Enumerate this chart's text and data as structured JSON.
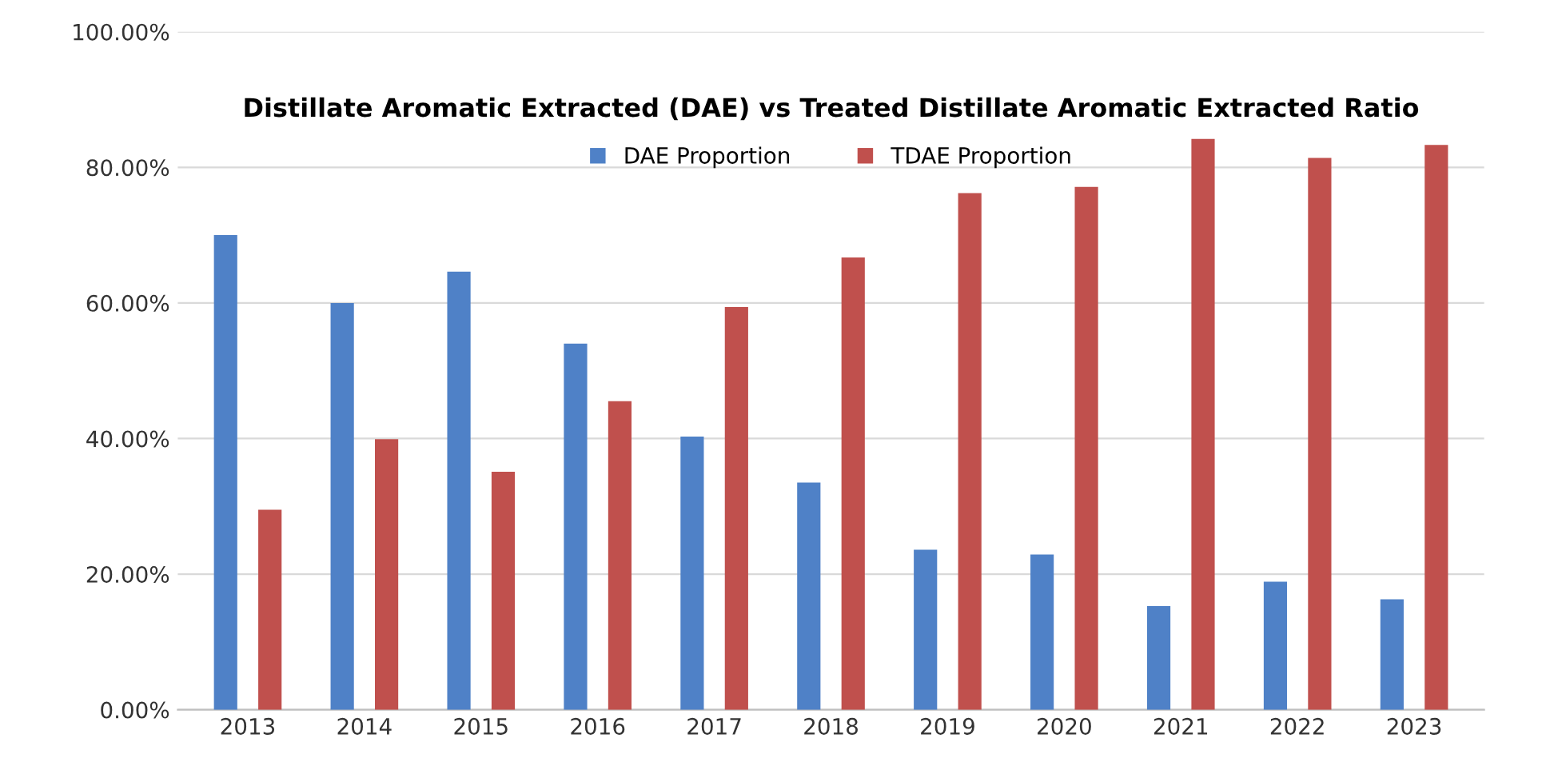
{
  "chart_data": {
    "type": "bar",
    "title": "Distillate Aromatic Extracted (DAE) vs Treated Distillate Aromatic Extracted Ratio",
    "categories": [
      "2013",
      "2014",
      "2015",
      "2016",
      "2017",
      "2018",
      "2019",
      "2020",
      "2021",
      "2022",
      "2023"
    ],
    "series": [
      {
        "name": "DAE Proportion",
        "color": "#4f81c7",
        "values": [
          70.0,
          60.0,
          64.6,
          54.0,
          40.3,
          33.5,
          23.6,
          22.9,
          15.3,
          18.9,
          16.3
        ]
      },
      {
        "name": "TDAE Proportion",
        "color": "#c0504d",
        "values": [
          29.5,
          39.9,
          35.1,
          45.5,
          59.4,
          66.7,
          76.2,
          77.1,
          84.2,
          81.4,
          83.3
        ]
      }
    ],
    "ylim": [
      0,
      100
    ],
    "yticks": [
      {
        "value": 0,
        "label": "0.00%"
      },
      {
        "value": 20,
        "label": "20.00%"
      },
      {
        "value": 40,
        "label": "40.00%"
      },
      {
        "value": 60,
        "label": "60.00%"
      },
      {
        "value": 80,
        "label": "80.00%"
      },
      {
        "value": 100,
        "label": "100.00%"
      }
    ],
    "grid": "y",
    "legend": "top"
  }
}
